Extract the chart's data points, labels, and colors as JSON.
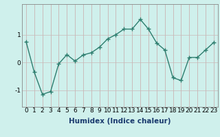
{
  "x": [
    0,
    1,
    2,
    3,
    4,
    5,
    6,
    7,
    8,
    9,
    10,
    11,
    12,
    13,
    14,
    15,
    16,
    17,
    18,
    19,
    20,
    21,
    22,
    23
  ],
  "y": [
    0.75,
    -0.35,
    -1.15,
    -1.05,
    -0.05,
    0.28,
    0.05,
    0.27,
    0.35,
    0.55,
    0.85,
    1.0,
    1.2,
    1.2,
    1.55,
    1.2,
    0.7,
    0.45,
    -0.55,
    -0.65,
    0.18,
    0.18,
    0.45,
    0.72
  ],
  "title": "",
  "xlabel": "Humidex (Indice chaleur)",
  "ylabel": "",
  "xlim": [
    -0.5,
    23.5
  ],
  "ylim": [
    -1.6,
    2.1
  ],
  "yticks": [
    -1,
    0,
    1
  ],
  "xticks": [
    0,
    1,
    2,
    3,
    4,
    5,
    6,
    7,
    8,
    9,
    10,
    11,
    12,
    13,
    14,
    15,
    16,
    17,
    18,
    19,
    20,
    21,
    22,
    23
  ],
  "line_color": "#2d7d6e",
  "marker": "+",
  "bg_color": "#cff0ec",
  "grid_color_v": "#c8a8a8",
  "grid_color_h": "#c8b8b8",
  "axis_fontsize": 7,
  "tick_fontsize": 6.5,
  "xlabel_fontsize": 7.5
}
